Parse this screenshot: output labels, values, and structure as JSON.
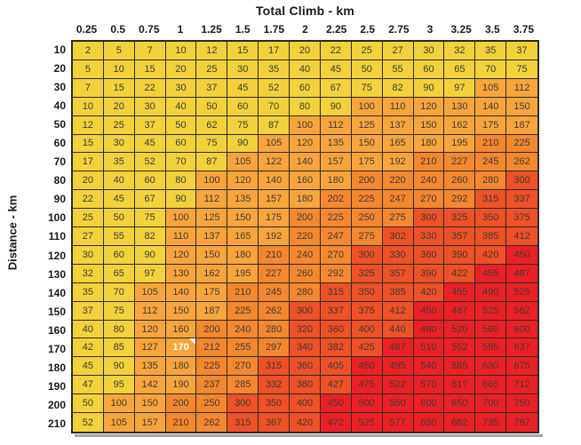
{
  "chart_data": {
    "type": "heatmap",
    "title": "Total Climb - km",
    "ylabel": "Distance - km",
    "x_labels": [
      "0.25",
      "0.5",
      "0.75",
      "1",
      "1.25",
      "1.5",
      "1.75",
      "2",
      "2.25",
      "2.5",
      "2.75",
      "3",
      "3.25",
      "3.5",
      "3.75"
    ],
    "y_labels": [
      "10",
      "20",
      "30",
      "40",
      "50",
      "60",
      "70",
      "80",
      "90",
      "100",
      "110",
      "120",
      "130",
      "140",
      "150",
      "160",
      "170",
      "180",
      "190",
      "200",
      "210"
    ],
    "values": [
      [
        2,
        5,
        7,
        10,
        12,
        15,
        17,
        20,
        22,
        25,
        27,
        30,
        32,
        35,
        37
      ],
      [
        5,
        10,
        15,
        20,
        25,
        30,
        35,
        40,
        45,
        50,
        55,
        60,
        65,
        70,
        75
      ],
      [
        7,
        15,
        22,
        30,
        37,
        45,
        52,
        60,
        67,
        75,
        82,
        90,
        97,
        105,
        112
      ],
      [
        10,
        20,
        30,
        40,
        50,
        60,
        70,
        80,
        90,
        100,
        110,
        120,
        130,
        140,
        150
      ],
      [
        12,
        25,
        37,
        50,
        62,
        75,
        87,
        100,
        112,
        125,
        137,
        150,
        162,
        175,
        187
      ],
      [
        15,
        30,
        45,
        60,
        75,
        90,
        105,
        120,
        135,
        150,
        165,
        180,
        195,
        210,
        225
      ],
      [
        17,
        35,
        52,
        70,
        87,
        105,
        122,
        140,
        157,
        175,
        192,
        210,
        227,
        245,
        262
      ],
      [
        20,
        40,
        60,
        80,
        100,
        120,
        140,
        160,
        180,
        200,
        220,
        240,
        260,
        280,
        300
      ],
      [
        22,
        45,
        67,
        90,
        112,
        135,
        157,
        180,
        202,
        225,
        247,
        270,
        292,
        315,
        337
      ],
      [
        25,
        50,
        75,
        100,
        125,
        150,
        175,
        200,
        225,
        250,
        275,
        300,
        325,
        350,
        375
      ],
      [
        27,
        55,
        82,
        110,
        137,
        165,
        192,
        220,
        247,
        275,
        302,
        330,
        357,
        385,
        412
      ],
      [
        30,
        60,
        90,
        120,
        150,
        180,
        210,
        240,
        270,
        300,
        330,
        360,
        390,
        420,
        450
      ],
      [
        32,
        65,
        97,
        130,
        162,
        195,
        227,
        260,
        292,
        325,
        357,
        390,
        422,
        455,
        487
      ],
      [
        35,
        70,
        105,
        140,
        175,
        210,
        245,
        280,
        315,
        350,
        385,
        420,
        455,
        490,
        525
      ],
      [
        37,
        75,
        112,
        150,
        187,
        225,
        262,
        300,
        337,
        375,
        412,
        450,
        487,
        525,
        562
      ],
      [
        40,
        80,
        120,
        160,
        200,
        240,
        280,
        320,
        360,
        400,
        440,
        480,
        520,
        560,
        600
      ],
      [
        42,
        85,
        127,
        170,
        212,
        255,
        297,
        340,
        382,
        425,
        467,
        510,
        552,
        595,
        637
      ],
      [
        45,
        90,
        135,
        180,
        225,
        270,
        315,
        360,
        405,
        450,
        495,
        540,
        585,
        630,
        675
      ],
      [
        47,
        95,
        142,
        190,
        237,
        285,
        332,
        380,
        427,
        475,
        522,
        570,
        617,
        665,
        712
      ],
      [
        50,
        100,
        150,
        200,
        250,
        300,
        350,
        400,
        450,
        500,
        550,
        600,
        650,
        700,
        750
      ],
      [
        52,
        105,
        157,
        210,
        262,
        315,
        367,
        420,
        472,
        525,
        577,
        630,
        682,
        735,
        787
      ]
    ],
    "color_scale": {
      "bands": [
        {
          "label": "0-99",
          "max": 99,
          "color": "#F2D13B"
        },
        {
          "label": "100-199",
          "max": 199,
          "color": "#F9A53C"
        },
        {
          "label": "200-299",
          "max": 299,
          "color": "#F5872E"
        },
        {
          "label": "300-449",
          "max": 449,
          "color": "#F05126"
        },
        {
          "label": "450+",
          "max": null,
          "color": "#EC2024"
        }
      ]
    },
    "cell_text_color": "#3B3B3B",
    "border_color": "#2B2B2B",
    "highlighted_cell": {
      "row_label": "170",
      "col_label": "1",
      "value": 170,
      "text_color": "#FFFFFF",
      "marker": "white-corner-triangle"
    },
    "layout": {
      "grid": "on",
      "legend": "none",
      "x_axis_position": "top",
      "y_axis_position": "left"
    }
  }
}
